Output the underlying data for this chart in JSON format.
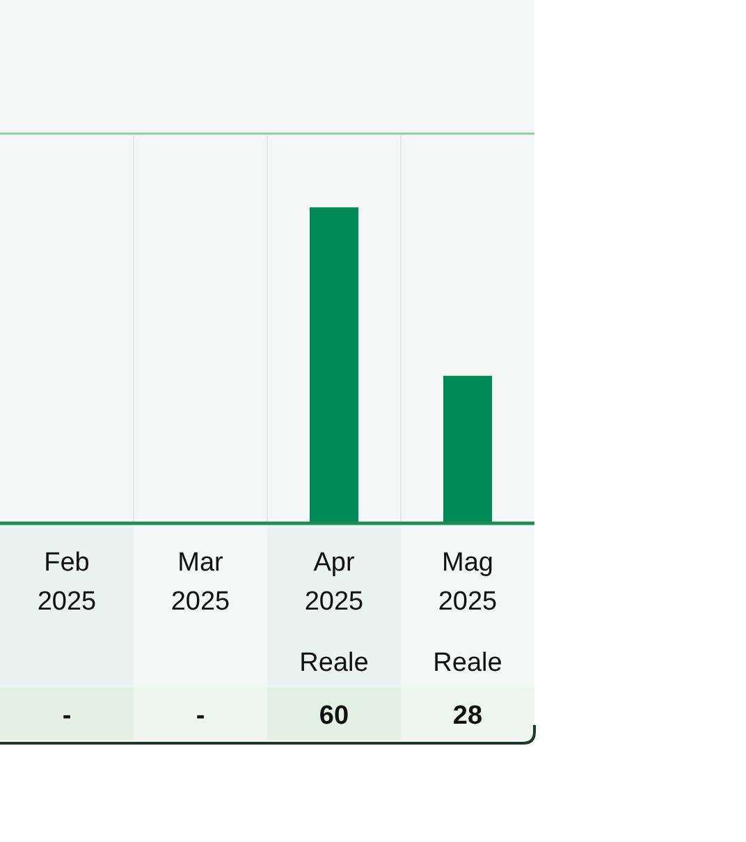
{
  "chart_data": {
    "type": "bar",
    "categories": [
      "Feb 2025",
      "Mar 2025",
      "Apr 2025",
      "Mag 2025"
    ],
    "values": [
      null,
      null,
      60,
      28
    ],
    "value_labels": [
      "-",
      "-",
      "60",
      "28"
    ],
    "color": "#008a58",
    "ylim": [
      0,
      74
    ],
    "tick_labels": "x",
    "grid": "x",
    "annotations": [
      "Reale",
      "Reale"
    ]
  }
}
